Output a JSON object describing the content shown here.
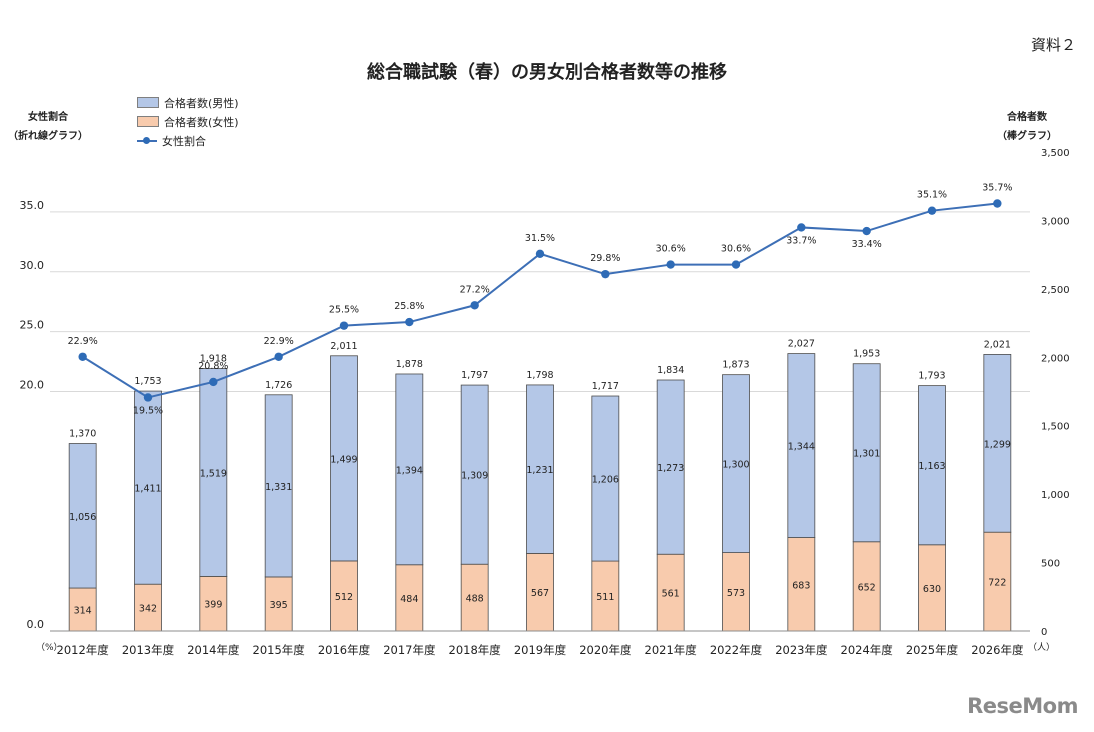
{
  "doc_ref": "資料２",
  "title": "総合職試験（春）の男女別合格者数等の推移",
  "left_axis_caption": [
    "女性割合",
    "（折れ線グラフ）"
  ],
  "right_axis_caption": [
    "合格者数",
    "（棒グラフ）"
  ],
  "logo_text": "ReseMom",
  "chart_data": {
    "type": "bar",
    "stacked": true,
    "categories": [
      "2012年度",
      "2013年度",
      "2014年度",
      "2015年度",
      "2016年度",
      "2017年度",
      "2018年度",
      "2019年度",
      "2020年度",
      "2021年度",
      "2022年度",
      "2023年度",
      "2024年度",
      "2025年度",
      "2026年度"
    ],
    "series": [
      {
        "name": "合格者数(女性)",
        "color": "#f8cbad",
        "values": [
          314,
          342,
          399,
          395,
          512,
          484,
          488,
          567,
          511,
          561,
          573,
          683,
          652,
          630,
          722
        ]
      },
      {
        "name": "合格者数(男性)",
        "color": "#b4c7e7",
        "values": [
          1056,
          1411,
          1519,
          1331,
          1499,
          1394,
          1309,
          1231,
          1206,
          1273,
          1300,
          1344,
          1301,
          1163,
          1299
        ]
      }
    ],
    "totals": [
      1370,
      1753,
      1918,
      1726,
      2011,
      1878,
      1797,
      1798,
      1717,
      1834,
      1873,
      2027,
      1953,
      1793,
      2021
    ],
    "totals_labels": [
      "1,370",
      "1,753",
      "1,918",
      "1,726",
      "2,011",
      "1,878",
      "1,797",
      "1,798",
      "1,717",
      "1,834",
      "1,873",
      "2,027",
      "1,953",
      "1,793",
      "2,021"
    ],
    "male_labels": [
      "1,056",
      "1,411",
      "1,519",
      "1,331",
      "1,499",
      "1,394",
      "1,309",
      "1,231",
      "1,206",
      "1,273",
      "1,300",
      "1,344",
      "1,301",
      "1,163",
      "1,299"
    ],
    "female_labels": [
      "314",
      "342",
      "399",
      "395",
      "512",
      "484",
      "488",
      "567",
      "511",
      "561",
      "573",
      "683",
      "652",
      "630",
      "722"
    ],
    "line_series": {
      "name": "女性割合",
      "color": "#2e6bb6",
      "values": [
        22.9,
        19.5,
        20.8,
        22.9,
        25.5,
        25.8,
        27.2,
        31.5,
        29.8,
        30.6,
        30.6,
        33.7,
        33.4,
        35.1,
        35.7
      ],
      "labels": [
        "22.9%",
        "19.5%",
        "20.8%",
        "22.9%",
        "25.5%",
        "25.8%",
        "27.2%",
        "31.5%",
        "29.8%",
        "30.6%",
        "30.6%",
        "33.7%",
        "33.4%",
        "35.1%",
        "35.7%"
      ]
    },
    "left_axis": {
      "unit": "（%）",
      "range": [
        0,
        40
      ],
      "ticks": [
        0,
        20,
        25,
        30,
        35
      ],
      "tick_labels": [
        "0.0",
        "20.0",
        "25.0",
        "30.0",
        "35.0"
      ]
    },
    "right_axis": {
      "unit": "（人）",
      "range": [
        0,
        3500
      ],
      "ticks": [
        0,
        500,
        1000,
        1500,
        2000,
        2500,
        3000,
        3500
      ],
      "tick_labels": [
        "0",
        "500",
        "1,000",
        "1,500",
        "2,000",
        "2,500",
        "3,000",
        "3,500"
      ]
    },
    "grid": true,
    "legend_position": "top-left"
  }
}
